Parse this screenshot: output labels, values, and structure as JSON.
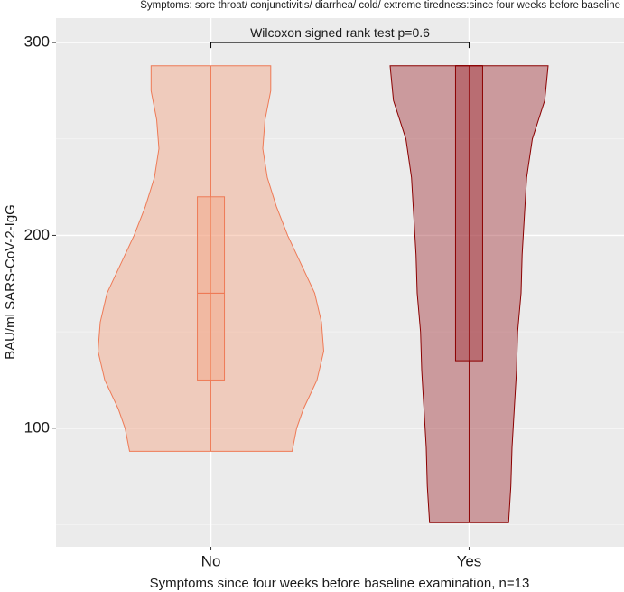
{
  "chart_data": {
    "type": "violin",
    "title": "Symptoms: sore throat/ conjunctivitis/ diarrhea/ cold/ extreme tiredness:since four weeks before baseline",
    "x_label": "Symptoms since four weeks before baseline examination, n=13",
    "y_label": "BAU/ml SARS-CoV-2-IgG",
    "categories": [
      "No",
      "Yes"
    ],
    "ylim": [
      38.5,
      312.7
    ],
    "yticks": [
      100,
      200,
      300
    ],
    "y_minor_grid": [
      50,
      150,
      250
    ],
    "grid": true,
    "annotation": {
      "label": "Wilcoxon signed rank test p=0.6",
      "y": 300
    },
    "violins": [
      {
        "color": "#f4a582",
        "outline": "#ee7a56",
        "density_y": [
          288,
          275,
          260,
          245,
          230,
          215,
          200,
          185,
          170,
          155,
          140,
          125,
          110,
          100,
          88
        ],
        "density": [
          0.53,
          0.53,
          0.48,
          0.46,
          0.5,
          0.58,
          0.68,
          0.8,
          0.92,
          0.98,
          1,
          0.94,
          0.82,
          0.76,
          0.72
        ],
        "min": 88,
        "q1": 125,
        "median": 170,
        "q3": 220,
        "max": 288
      },
      {
        "color": "#a3383f",
        "outline": "#8b0000",
        "density_y": [
          288,
          270,
          250,
          230,
          210,
          190,
          170,
          150,
          130,
          110,
          90,
          70,
          51
        ],
        "density": [
          0.7,
          0.67,
          0.56,
          0.51,
          0.49,
          0.47,
          0.46,
          0.43,
          0.42,
          0.4,
          0.38,
          0.37,
          0.35
        ],
        "min": 51,
        "q1": 135,
        "median": 288,
        "q3": 288,
        "max": 288
      }
    ]
  }
}
